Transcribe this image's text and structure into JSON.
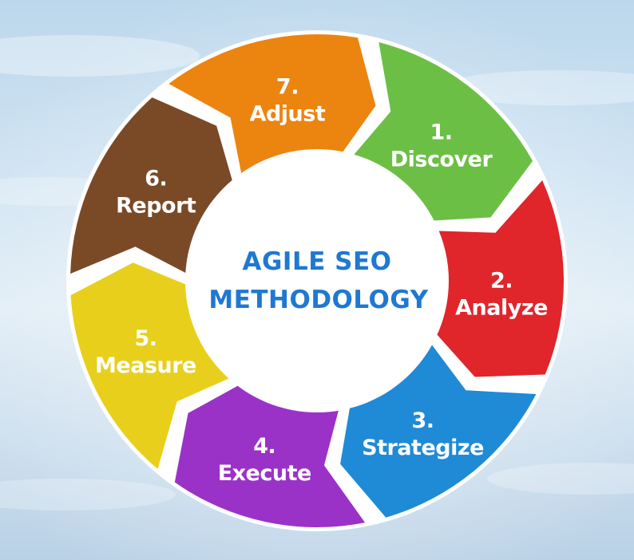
{
  "diagram": {
    "title_lines": [
      "AGILE SEO",
      "METHODOLOGY"
    ],
    "steps": [
      {
        "number": "1.",
        "label": "Discover",
        "color": "#6cbf45"
      },
      {
        "number": "2.",
        "label": "Analyze",
        "color": "#e0252b"
      },
      {
        "number": "3.",
        "label": "Strategize",
        "color": "#1f8ad6"
      },
      {
        "number": "4.",
        "label": "Execute",
        "color": "#9b32c8"
      },
      {
        "number": "5.",
        "label": "Measure",
        "color": "#e8cf1c"
      },
      {
        "number": "6.",
        "label": "Report",
        "color": "#7a4a26"
      },
      {
        "number": "7.",
        "label": "Adjust",
        "color": "#ec8410"
      }
    ],
    "colors": {
      "ring_background": "#ffffff",
      "title_color": "#1f78d1"
    }
  }
}
